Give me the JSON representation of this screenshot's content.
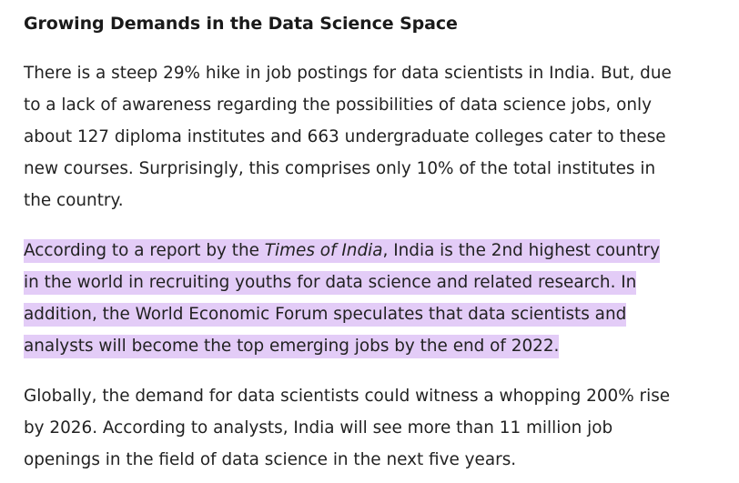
{
  "article": {
    "heading": "Growing Demands in the Data Science Space",
    "paragraph1": {
      "lines": [
        "There is a steep 29% hike in job postings for data scientists in India. But, due",
        "to a lack of awareness regarding the possibilities of data science jobs, only",
        "about 127 diploma institutes and 663 undergraduate colleges cater to these",
        "new courses. Surprisingly, this comprises only 10% of the total institutes in",
        "the country."
      ]
    },
    "paragraph2": {
      "highlight_color": "#e3ccf7",
      "line1_prefix": "According to a report by the ",
      "line1_italic": "Times of India",
      "line1_suffix": ", India is the 2nd highest country",
      "lines": [
        "in the world in recruiting youths for data science and related research. In",
        "addition, the World Economic Forum speculates that data scientists and",
        "analysts will become the top emerging jobs by the end of 2022."
      ]
    },
    "paragraph3": {
      "lines": [
        "Globally, the demand for data scientists could witness a whopping 200% rise",
        "by 2026. According to analysts, India will see more than 11 million job",
        "openings in the field of data science in the next five years."
      ]
    }
  }
}
